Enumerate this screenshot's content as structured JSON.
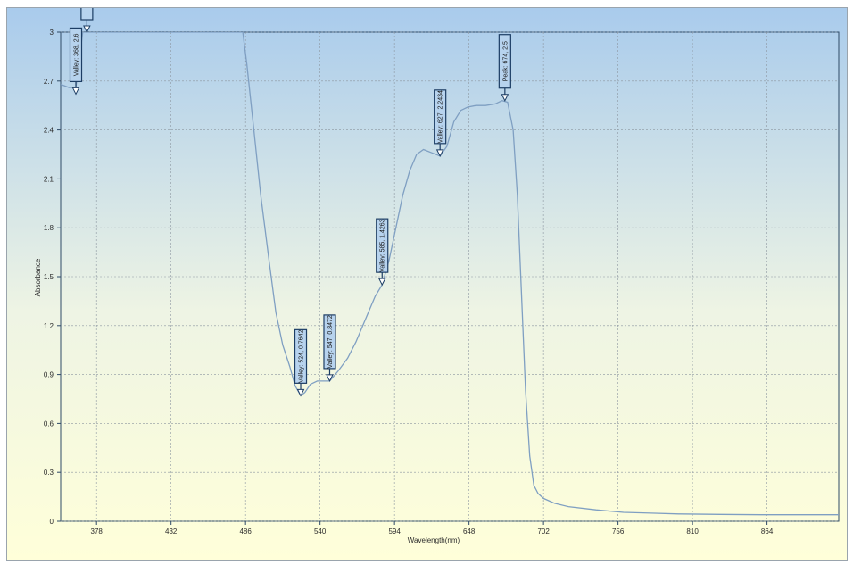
{
  "chart_data": {
    "type": "line",
    "title": "",
    "xlabel": "Wavelength(nm)",
    "ylabel": "Absorbance",
    "xlim": [
      352,
      916
    ],
    "ylim": [
      0,
      3
    ],
    "x_ticks": [
      "378",
      "432",
      "486",
      "540",
      "594",
      "648",
      "702",
      "756",
      "810",
      "864"
    ],
    "y_ticks": [
      "0",
      "0.3",
      "0.6",
      "0.9",
      "1.2",
      "1.5",
      "1.8",
      "2.1",
      "2.4",
      "2.7",
      "3"
    ],
    "grid": true,
    "colors": {
      "line": "#7f9fc2",
      "plot_bg_top": "#a9cbec",
      "plot_bg_bottom": "#ffffd9",
      "label_fill": "#b7d3ee",
      "label_stroke": "#1c3d64"
    },
    "series": [
      {
        "points": [
          [
            352,
            2.68
          ],
          [
            358,
            2.66
          ],
          [
            363,
            2.66
          ],
          [
            368,
            3.0
          ],
          [
            371,
            3.0
          ],
          [
            400,
            3.0
          ],
          [
            480,
            3.0
          ],
          [
            484,
            3.0
          ],
          [
            487,
            2.8
          ],
          [
            492,
            2.4
          ],
          [
            497,
            2.0
          ],
          [
            503,
            1.6
          ],
          [
            508,
            1.28
          ],
          [
            513,
            1.08
          ],
          [
            518,
            0.95
          ],
          [
            522,
            0.83
          ],
          [
            526,
            0.77
          ],
          [
            529,
            0.79
          ],
          [
            533,
            0.84
          ],
          [
            538,
            0.86
          ],
          [
            543,
            0.86
          ],
          [
            547,
            0.86
          ],
          [
            553,
            0.92
          ],
          [
            560,
            1.0
          ],
          [
            566,
            1.1
          ],
          [
            571,
            1.2
          ],
          [
            576,
            1.3
          ],
          [
            580,
            1.38
          ],
          [
            585,
            1.45
          ],
          [
            590,
            1.6
          ],
          [
            595,
            1.8
          ],
          [
            600,
            2.0
          ],
          [
            605,
            2.15
          ],
          [
            610,
            2.25
          ],
          [
            615,
            2.28
          ],
          [
            621,
            2.26
          ],
          [
            627,
            2.24
          ],
          [
            632,
            2.3
          ],
          [
            637,
            2.45
          ],
          [
            642,
            2.52
          ],
          [
            647,
            2.54
          ],
          [
            653,
            2.55
          ],
          [
            660,
            2.55
          ],
          [
            667,
            2.56
          ],
          [
            672,
            2.58
          ],
          [
            676,
            2.57
          ],
          [
            680,
            2.4
          ],
          [
            683,
            2.0
          ],
          [
            686,
            1.4
          ],
          [
            689,
            0.8
          ],
          [
            692,
            0.4
          ],
          [
            695,
            0.22
          ],
          [
            698,
            0.17
          ],
          [
            702,
            0.14
          ],
          [
            710,
            0.11
          ],
          [
            720,
            0.09
          ],
          [
            740,
            0.07
          ],
          [
            760,
            0.055
          ],
          [
            780,
            0.05
          ],
          [
            800,
            0.045
          ],
          [
            830,
            0.042
          ],
          [
            860,
            0.04
          ],
          [
            890,
            0.04
          ],
          [
            916,
            0.04
          ]
        ]
      }
    ],
    "annotations": [
      {
        "text": "Valley: 368, 2.6",
        "x": 363,
        "y": 2.62
      },
      {
        "text": "",
        "x": 371,
        "y": 3.0
      },
      {
        "text": "Valley: 524, 0.7642",
        "x": 526,
        "y": 0.77
      },
      {
        "text": "Valley: 547, 0.8472",
        "x": 547,
        "y": 0.86
      },
      {
        "text": "Valley: 585, 1.4263",
        "x": 585,
        "y": 1.45
      },
      {
        "text": "Valley: 627, 2.2434",
        "x": 627,
        "y": 2.24
      },
      {
        "text": "Peak: 674, 2.5",
        "x": 674,
        "y": 2.58
      }
    ]
  }
}
